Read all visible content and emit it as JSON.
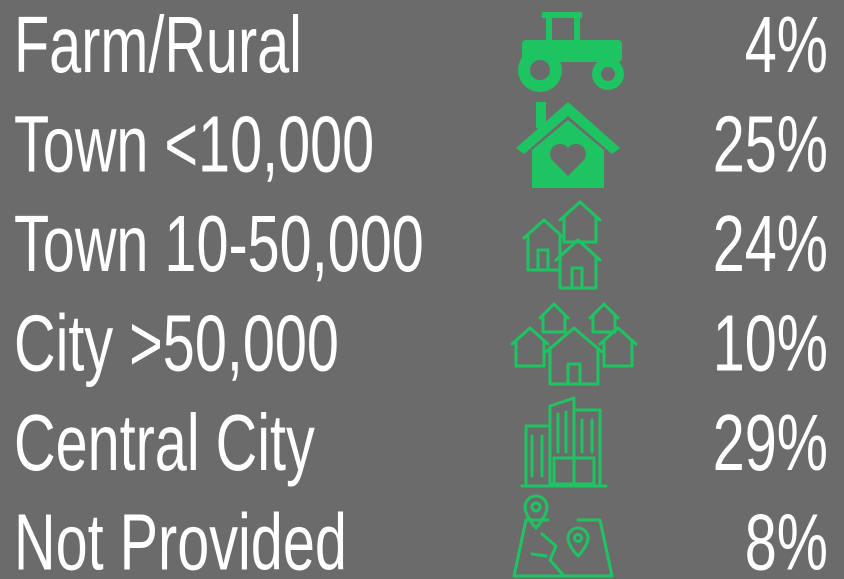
{
  "rows": [
    {
      "label": "Farm/Rural",
      "value": "4%"
    },
    {
      "label": "Town <10,000",
      "value": "25%"
    },
    {
      "label": "Town 10-50,000",
      "value": "24%"
    },
    {
      "label": "City >50,000",
      "value": "10%"
    },
    {
      "label": "Central City",
      "value": "29%"
    },
    {
      "label": "Not Provided",
      "value": "8%"
    }
  ]
}
